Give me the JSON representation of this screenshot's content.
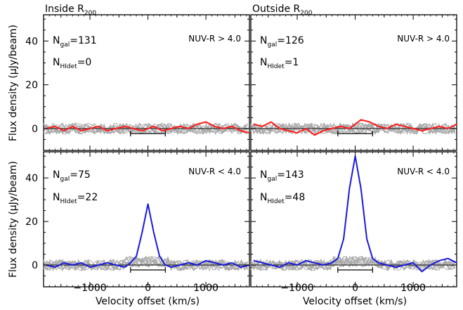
{
  "chart_data": {
    "type": "line",
    "shared": {
      "xlabel": "Velocity offset (km/s)",
      "ylabel": "Flux density (μJy/beam)",
      "xlim": [
        -1800,
        1750
      ],
      "ylim": [
        -10,
        52
      ],
      "xticks": [
        -1000,
        0,
        1000
      ],
      "yticks": [
        0,
        20,
        40
      ],
      "velocity_bar": [
        -300,
        300
      ]
    },
    "panels": [
      {
        "title_main": "Inside R",
        "title_sub": "200",
        "ngal_sub": "gal",
        "ngal_value": "=131",
        "nhi_sub": "HIdet",
        "nhi_value": "=0",
        "color_cut": "NUV-R > 4.0",
        "stack_color": "#ff1a1a",
        "peak": 0,
        "stack_series": {
          "x": [
            -1750,
            -1600,
            -1450,
            -1300,
            -1150,
            -1000,
            -850,
            -700,
            -550,
            -400,
            -250,
            -100,
            0,
            100,
            250,
            400,
            550,
            700,
            850,
            1000,
            1150,
            1300,
            1450,
            1600,
            1750
          ],
          "y": [
            0,
            1,
            -1,
            1,
            -1,
            0,
            1,
            -1,
            0,
            1,
            0,
            -1,
            0,
            1,
            -1,
            0,
            1,
            0,
            2,
            3,
            1,
            0,
            1,
            -1,
            -2
          ]
        }
      },
      {
        "title_main": "Outside R",
        "title_sub": "200",
        "ngal_sub": "gal",
        "ngal_value": "=126",
        "nhi_sub": "HIdet",
        "nhi_value": "=1",
        "color_cut": "NUV-R > 4.0",
        "stack_color": "#ff1a1a",
        "peak": 0,
        "stack_series": {
          "x": [
            -1750,
            -1600,
            -1450,
            -1300,
            -1150,
            -1000,
            -850,
            -700,
            -550,
            -400,
            -250,
            -100,
            0,
            100,
            250,
            400,
            550,
            700,
            850,
            1000,
            1150,
            1300,
            1450,
            1600,
            1750
          ],
          "y": [
            2,
            1,
            3,
            0,
            -1,
            -2,
            0,
            -3,
            -1,
            0,
            1,
            0,
            2,
            4,
            3,
            1,
            0,
            2,
            1,
            0,
            -1,
            0,
            1,
            0,
            2
          ]
        }
      },
      {
        "title_main": "",
        "title_sub": "",
        "ngal_sub": "gal",
        "ngal_value": "=75",
        "nhi_sub": "HIdet",
        "nhi_value": "=22",
        "color_cut": "NUV-R < 4.0",
        "stack_color": "#1a1adb",
        "peak": 28,
        "stack_series": {
          "x": [
            -1750,
            -1600,
            -1450,
            -1300,
            -1150,
            -1000,
            -850,
            -700,
            -550,
            -400,
            -300,
            -200,
            -100,
            0,
            100,
            200,
            300,
            400,
            550,
            700,
            850,
            1000,
            1150,
            1300,
            1450,
            1600,
            1750
          ],
          "y": [
            0,
            -1,
            1,
            0,
            1,
            -1,
            0,
            1,
            0,
            -1,
            1,
            4,
            15,
            28,
            15,
            4,
            0,
            -1,
            0,
            1,
            0,
            2,
            1,
            0,
            1,
            -1,
            0
          ]
        }
      },
      {
        "title_main": "",
        "title_sub": "",
        "ngal_sub": "gal",
        "ngal_value": "=143",
        "nhi_sub": "HIdet",
        "nhi_value": "=48",
        "color_cut": "NUV-R < 4.0",
        "stack_color": "#1a1adb",
        "peak": 50,
        "stack_series": {
          "x": [
            -1750,
            -1600,
            -1450,
            -1300,
            -1150,
            -1000,
            -850,
            -700,
            -550,
            -400,
            -300,
            -200,
            -100,
            0,
            100,
            200,
            300,
            400,
            550,
            700,
            850,
            1000,
            1150,
            1300,
            1450,
            1600,
            1750
          ],
          "y": [
            2,
            1,
            0,
            -1,
            1,
            0,
            2,
            1,
            0,
            1,
            3,
            12,
            35,
            50,
            35,
            12,
            3,
            1,
            0,
            -1,
            0,
            1,
            -3,
            0,
            2,
            3,
            1
          ]
        }
      }
    ]
  }
}
